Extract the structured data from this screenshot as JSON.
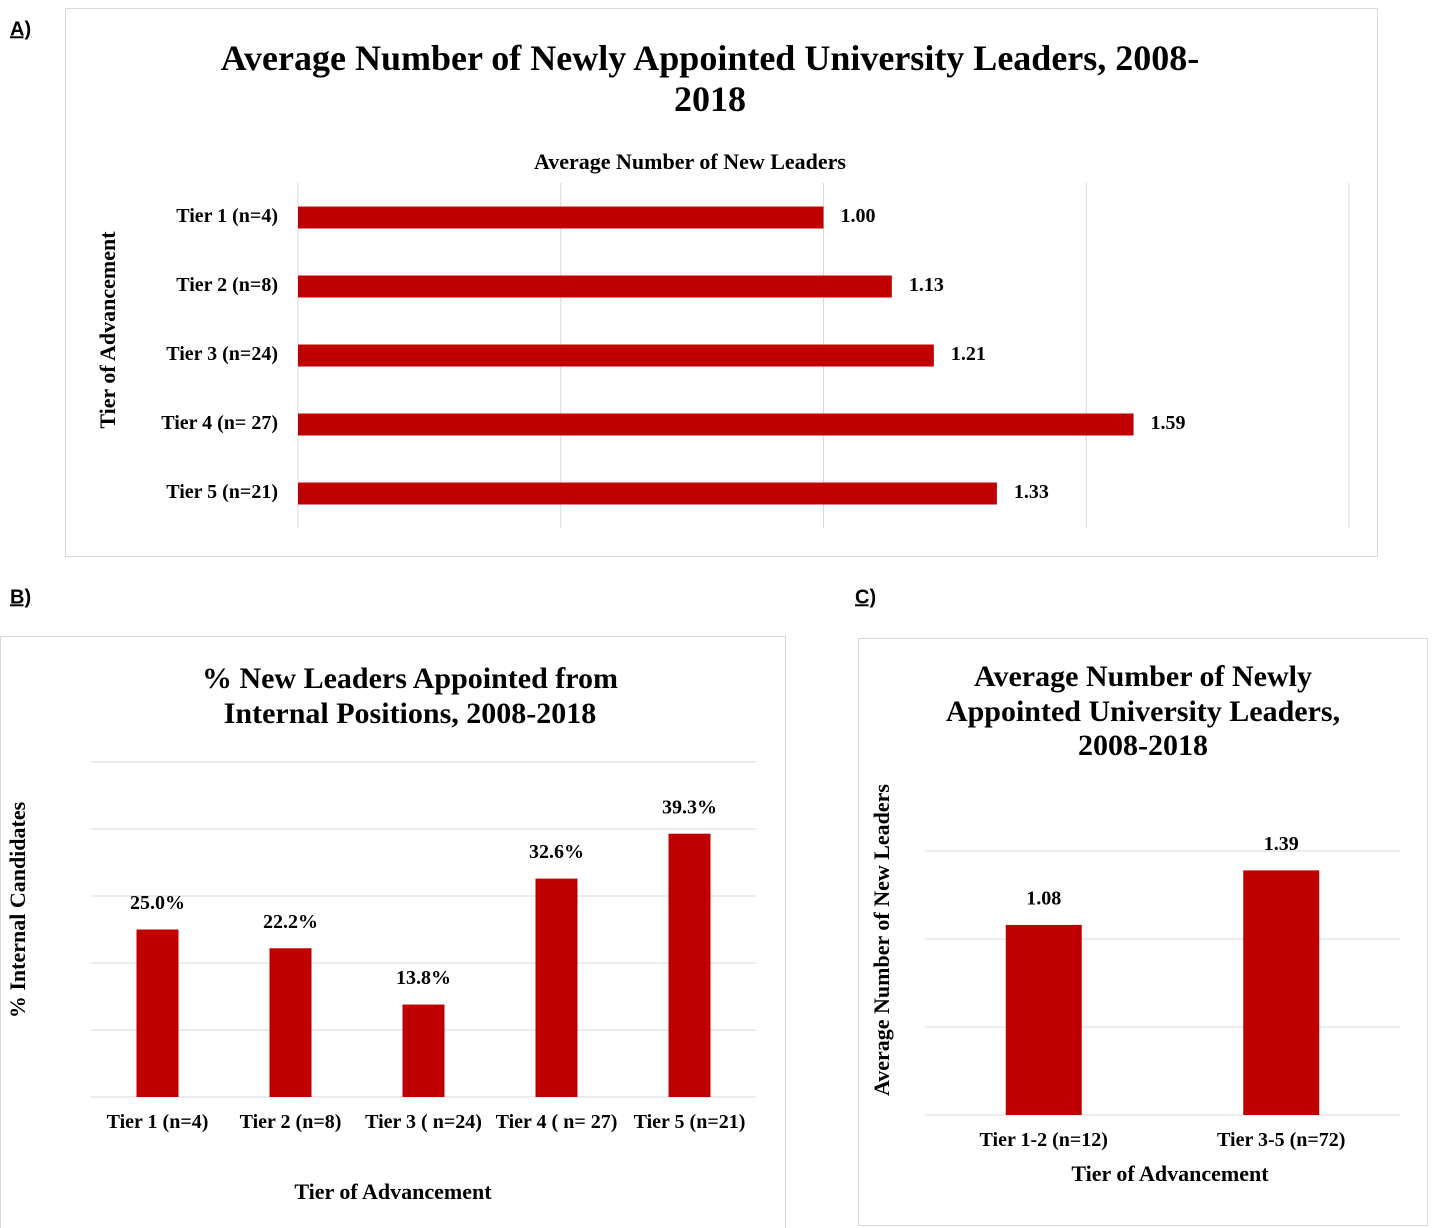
{
  "chart_data": [
    {
      "type": "hbar",
      "panel_label": "A)",
      "title": "Average Number of Newly Appointed University Leaders, 2008-2018",
      "xlabel": "Average Number of New Leaders",
      "ylabel": "Tier of Advancement",
      "categories": [
        "Tier 1 (n=4)",
        "Tier 2 (n=8)",
        "Tier 3 (n=24)",
        "Tier 4 (n= 27)",
        "Tier 5 (n=21)"
      ],
      "values": [
        1.0,
        1.13,
        1.21,
        1.59,
        1.33
      ],
      "value_labels": [
        "1.00",
        "1.13",
        "1.21",
        "1.59",
        "1.33"
      ],
      "color": "#c00000",
      "xlim": [
        0,
        2
      ],
      "xticks": [
        0,
        0.5,
        1,
        1.5,
        2
      ],
      "grid": true
    },
    {
      "type": "bar",
      "panel_label": "B)",
      "title": "% New Leaders Appointed from Internal Positions, 2008-2018",
      "xlabel": "Tier of Advancement",
      "ylabel": "% Internal Candidates",
      "categories": [
        "Tier 1 (n=4)",
        "Tier 2 (n=8)",
        "Tier 3 ( n=24)",
        "Tier 4 ( n= 27)",
        "Tier 5 (n=21)"
      ],
      "values": [
        25.0,
        22.2,
        13.8,
        32.6,
        39.3
      ],
      "value_labels": [
        "25.0%",
        "22.2%",
        "13.8%",
        "32.6%",
        "39.3%"
      ],
      "color": "#c00000",
      "ylim": [
        0,
        50
      ],
      "yticks": [
        0,
        10,
        20,
        30,
        40,
        50
      ],
      "grid": true
    },
    {
      "type": "bar",
      "panel_label": "C)",
      "title": "Average Number of Newly Appointed University Leaders, 2008-2018",
      "xlabel": "Tier of Advancement",
      "ylabel": "Average Number of New Leaders",
      "categories": [
        "Tier 1-2 (n=12)",
        "Tier 3-5 (n=72)"
      ],
      "values": [
        1.08,
        1.39
      ],
      "color": "#c00000",
      "ylim": [
        0,
        1.5
      ],
      "yticks": [
        0,
        0.5,
        1,
        1.5
      ],
      "grid": true
    }
  ]
}
